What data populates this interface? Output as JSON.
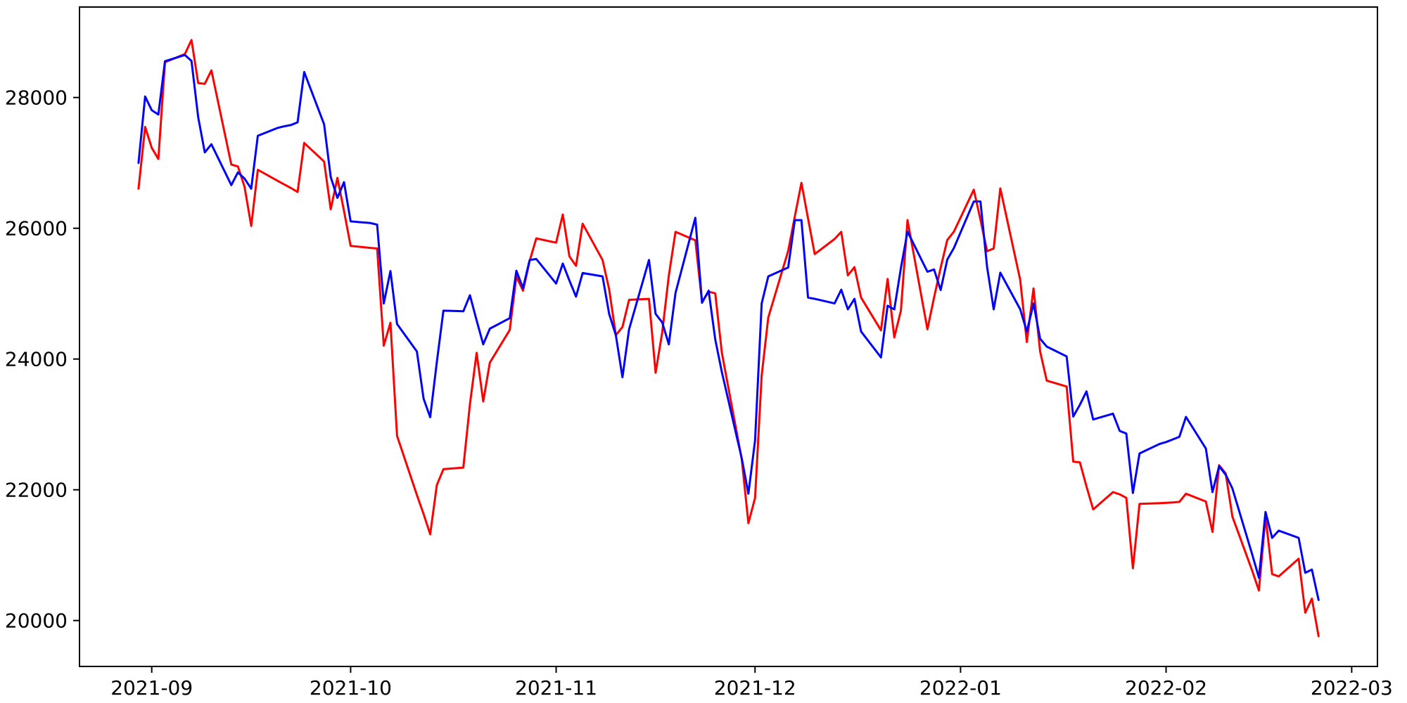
{
  "figure": {
    "background": "#ffffff",
    "axes_color": "#000000"
  },
  "chart_data": {
    "type": "line",
    "title": "",
    "xlabel": "",
    "ylabel": "",
    "grid": false,
    "legend": null,
    "ylim": [
      19298,
      29384
    ],
    "xlim_dates": [
      "2021-08-21",
      "2022-03-05"
    ],
    "y_ticks": [
      20000,
      22000,
      24000,
      26000,
      28000
    ],
    "x_ticks": [
      {
        "label": "2021-09",
        "date": "2021-09-01"
      },
      {
        "label": "2021-10",
        "date": "2021-10-01"
      },
      {
        "label": "2021-11",
        "date": "2021-11-01"
      },
      {
        "label": "2021-12",
        "date": "2021-12-01"
      },
      {
        "label": "2022-01",
        "date": "2022-01-01"
      },
      {
        "label": "2022-02",
        "date": "2022-02-01"
      },
      {
        "label": "2022-03",
        "date": "2022-03-01"
      }
    ],
    "x": [
      "2021-08-30",
      "2021-08-31",
      "2021-09-01",
      "2021-09-02",
      "2021-09-03",
      "2021-09-06",
      "2021-09-07",
      "2021-09-08",
      "2021-09-09",
      "2021-09-10",
      "2021-09-13",
      "2021-09-14",
      "2021-09-15",
      "2021-09-16",
      "2021-09-17",
      "2021-09-20",
      "2021-09-21",
      "2021-09-22",
      "2021-09-23",
      "2021-09-24",
      "2021-09-27",
      "2021-09-28",
      "2021-09-29",
      "2021-09-30",
      "2021-10-01",
      "2021-10-04",
      "2021-10-05",
      "2021-10-06",
      "2021-10-07",
      "2021-10-08",
      "2021-10-11",
      "2021-10-12",
      "2021-10-13",
      "2021-10-14",
      "2021-10-15",
      "2021-10-18",
      "2021-10-19",
      "2021-10-20",
      "2021-10-21",
      "2021-10-22",
      "2021-10-25",
      "2021-10-26",
      "2021-10-27",
      "2021-10-28",
      "2021-10-29",
      "2021-11-01",
      "2021-11-02",
      "2021-11-03",
      "2021-11-04",
      "2021-11-05",
      "2021-11-08",
      "2021-11-09",
      "2021-11-10",
      "2021-11-11",
      "2021-11-12",
      "2021-11-15",
      "2021-11-16",
      "2021-11-17",
      "2021-11-18",
      "2021-11-19",
      "2021-11-22",
      "2021-11-23",
      "2021-11-24",
      "2021-11-25",
      "2021-11-26",
      "2021-11-29",
      "2021-11-30",
      "2021-12-01",
      "2021-12-02",
      "2021-12-03",
      "2021-12-06",
      "2021-12-07",
      "2021-12-08",
      "2021-12-09",
      "2021-12-10",
      "2021-12-13",
      "2021-12-14",
      "2021-12-15",
      "2021-12-16",
      "2021-12-17",
      "2021-12-20",
      "2021-12-21",
      "2021-12-22",
      "2021-12-23",
      "2021-12-24",
      "2021-12-27",
      "2021-12-28",
      "2021-12-29",
      "2021-12-30",
      "2021-12-31",
      "2022-01-03",
      "2022-01-04",
      "2022-01-05",
      "2022-01-06",
      "2022-01-07",
      "2022-01-10",
      "2022-01-11",
      "2022-01-12",
      "2022-01-13",
      "2022-01-14",
      "2022-01-17",
      "2022-01-18",
      "2022-01-19",
      "2022-01-20",
      "2022-01-21",
      "2022-01-24",
      "2022-01-25",
      "2022-01-26",
      "2022-01-27",
      "2022-01-28",
      "2022-01-31",
      "2022-02-01",
      "2022-02-02",
      "2022-02-03",
      "2022-02-04",
      "2022-02-07",
      "2022-02-08",
      "2022-02-09",
      "2022-02-10",
      "2022-02-11",
      "2022-02-14",
      "2022-02-15",
      "2022-02-16",
      "2022-02-17",
      "2022-02-18",
      "2022-02-21",
      "2022-02-22",
      "2022-02-23",
      "2022-02-24"
    ],
    "series": [
      {
        "name": "red",
        "color": "#ff0000",
        "values": [
          26605,
          27550,
          27230,
          27060,
          28540,
          28665,
          28880,
          28220,
          28210,
          28415,
          26975,
          26945,
          26635,
          26035,
          26895,
          26725,
          26670,
          26615,
          26555,
          27305,
          27020,
          26290,
          26770,
          26265,
          25730,
          25700,
          25690,
          24205,
          24555,
          22825,
          21920,
          21630,
          21320,
          22070,
          22315,
          22340,
          23310,
          24095,
          23350,
          23945,
          24445,
          25265,
          25045,
          25500,
          25845,
          25780,
          26210,
          25570,
          25425,
          26070,
          25515,
          25065,
          24365,
          24490,
          24905,
          24920,
          23790,
          24405,
          25275,
          25945,
          25815,
          24875,
          25030,
          25005,
          24095,
          22465,
          21490,
          21875,
          23750,
          24635,
          25655,
          26180,
          26695,
          26150,
          25605,
          25835,
          25945,
          25280,
          25405,
          24940,
          24440,
          25225,
          24330,
          24740,
          26125,
          24455,
          24940,
          25395,
          25820,
          25950,
          26590,
          26130,
          25650,
          25690,
          26610,
          25210,
          24260,
          25080,
          24115,
          23670,
          23580,
          22430,
          22420,
          22050,
          21700,
          21965,
          21930,
          21876,
          20800,
          21785,
          21795,
          21800,
          21805,
          21815,
          21940,
          21820,
          21355,
          22375,
          22250,
          21590,
          20760,
          20460,
          21590,
          20710,
          20675,
          20945,
          20120,
          20335,
          19760
        ]
      },
      {
        "name": "blue",
        "color": "#0000ff",
        "values": [
          27000,
          28015,
          27805,
          27740,
          28555,
          28650,
          28560,
          27700,
          27160,
          27285,
          26660,
          26855,
          26760,
          26605,
          27415,
          27535,
          27560,
          27580,
          27620,
          28390,
          27590,
          26785,
          26465,
          26705,
          26105,
          26080,
          26055,
          24850,
          25345,
          24535,
          24115,
          23395,
          23110,
          23950,
          24740,
          24730,
          24975,
          24590,
          24225,
          24465,
          24625,
          25350,
          25085,
          25515,
          25530,
          25155,
          25460,
          25200,
          24955,
          25315,
          25265,
          24690,
          24365,
          23720,
          24455,
          25515,
          24690,
          24560,
          24225,
          25010,
          26160,
          24860,
          25045,
          24300,
          23800,
          22480,
          21940,
          22755,
          24850,
          25265,
          25400,
          26125,
          26125,
          24940,
          24920,
          24850,
          25060,
          24760,
          24920,
          24420,
          24025,
          24815,
          24760,
          25390,
          25950,
          25335,
          25370,
          25055,
          25520,
          25700,
          26410,
          26410,
          25410,
          24760,
          25320,
          24760,
          24420,
          24850,
          24310,
          24190,
          24040,
          23120,
          23300,
          23505,
          23075,
          23165,
          22900,
          22860,
          21950,
          22556,
          22700,
          22730,
          22770,
          22810,
          23115,
          22630,
          21965,
          22360,
          22230,
          22020,
          21010,
          20655,
          21660,
          21265,
          21375,
          21265,
          20730,
          20780,
          20315
        ]
      }
    ]
  }
}
